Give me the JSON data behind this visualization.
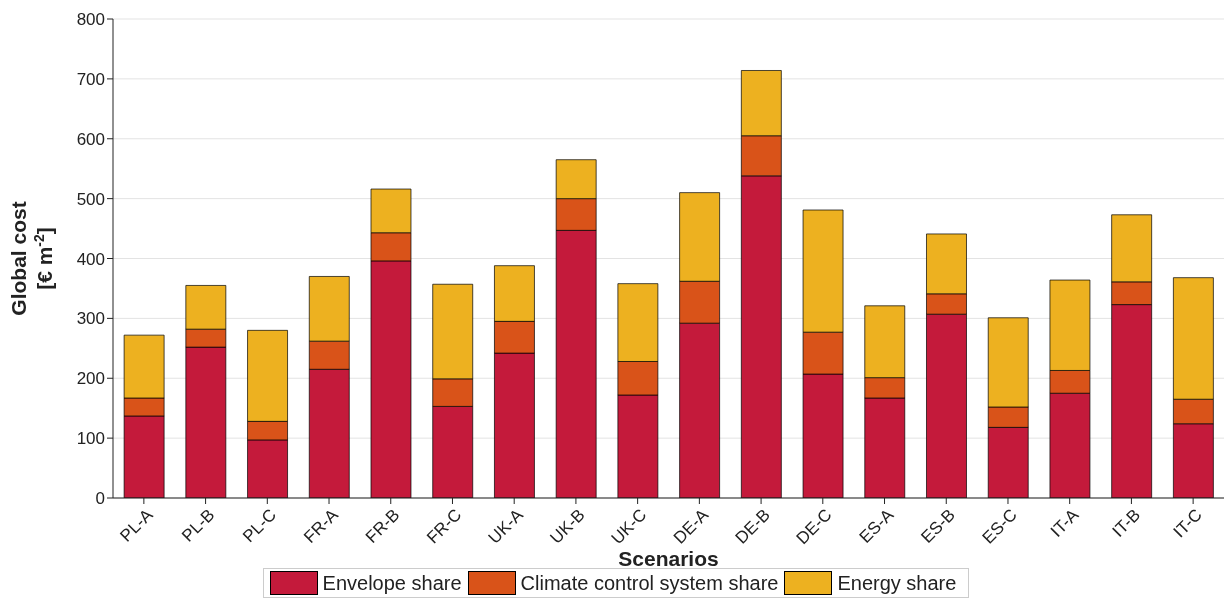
{
  "chart_data": {
    "type": "bar",
    "stacked": true,
    "xlabel": "Scenarios",
    "ylabel": "Global cost [€ m$^{-2}$]",
    "categories": [
      "PL-A",
      "PL-B",
      "PL-C",
      "FR-A",
      "FR-B",
      "FR-C",
      "UK-A",
      "UK-B",
      "UK-C",
      "DE-A",
      "DE-B",
      "DE-C",
      "ES-A",
      "ES-B",
      "ES-C",
      "IT-A",
      "IT-B",
      "IT-C"
    ],
    "series": [
      {
        "name": "Envelope share",
        "color": "#c41a3b",
        "values": [
          137,
          252,
          97,
          215,
          396,
          153,
          242,
          447,
          172,
          292,
          538,
          207,
          167,
          307,
          118,
          175,
          323,
          124
        ]
      },
      {
        "name": "Climate control system share",
        "color": "#d95319",
        "values": [
          30,
          30,
          31,
          47,
          47,
          46,
          53,
          53,
          56,
          70,
          67,
          70,
          34,
          34,
          34,
          38,
          38,
          41
        ]
      },
      {
        "name": "Energy share",
        "color": "#edb120",
        "values": [
          105,
          73,
          152,
          108,
          73,
          158,
          93,
          65,
          130,
          148,
          109,
          204,
          120,
          100,
          149,
          151,
          112,
          203
        ]
      }
    ],
    "ylim": [
      0,
      800
    ],
    "yticks": [
      0,
      100,
      200,
      300,
      400,
      500,
      600,
      700,
      800
    ],
    "grid": "y",
    "legend": "bottom"
  }
}
